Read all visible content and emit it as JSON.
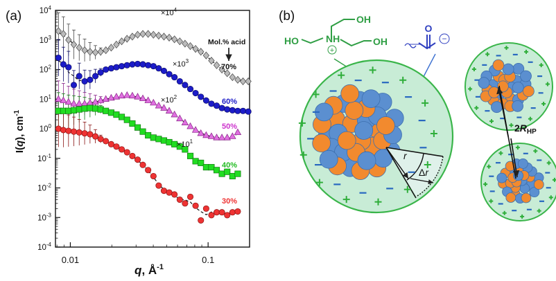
{
  "panel_a": {
    "label": "(a)",
    "chart_data": {
      "type": "scatter",
      "xscale": "log",
      "yscale": "log",
      "xlim": [
        0.0078,
        0.2
      ],
      "ylim": [
        0.0001,
        10000
      ],
      "xlabel_main": "q",
      "xlabel_unit": ", Å",
      "xlabel_exp": "-1",
      "ylabel_pre": "I(",
      "ylabel_q": "q",
      "ylabel_post": "), cm",
      "ylabel_exp": "-1",
      "xticks": [
        {
          "value": 0.01,
          "label": "0.01"
        },
        {
          "value": 0.1,
          "label": "0.1"
        }
      ],
      "yticks": [
        {
          "value": 10000,
          "exp": "4"
        },
        {
          "value": 1000,
          "exp": "3"
        },
        {
          "value": 100,
          "exp": "2"
        },
        {
          "value": 10,
          "exp": "1"
        },
        {
          "value": 1,
          "exp": "0"
        },
        {
          "value": 0.1,
          "exp": "-1"
        },
        {
          "value": 0.01,
          "exp": "-2"
        },
        {
          "value": 0.001,
          "exp": "-3"
        },
        {
          "value": 0.0001,
          "exp": "-4"
        }
      ],
      "legend_title": "Mol.% acid",
      "series": [
        {
          "name": "70%",
          "multiplier_exp": "4",
          "color": "#bbbbbb",
          "edge": "#444444",
          "marker": "diamond",
          "x": [
            0.0082,
            0.0089,
            0.0097,
            0.0106,
            0.0116,
            0.0127,
            0.0139,
            0.0152,
            0.0166,
            0.0181,
            0.0198,
            0.0216,
            0.0236,
            0.0258,
            0.0282,
            0.0308,
            0.0336,
            0.0367,
            0.0401,
            0.0438,
            0.0478,
            0.0522,
            0.057,
            0.0623,
            0.068,
            0.0743,
            0.0811,
            0.0886,
            0.0968,
            0.1057,
            0.1154,
            0.126,
            0.1376,
            0.1503,
            0.1641,
            0.1792,
            0.1957
          ],
          "y": [
            2000,
            1600,
            1000,
            700,
            550,
            450,
            400,
            380,
            400,
            450,
            550,
            700,
            900,
            1100,
            1300,
            1500,
            1600,
            1600,
            1500,
            1400,
            1300,
            1200,
            1050,
            900,
            750,
            620,
            500,
            400,
            300,
            200,
            140,
            100,
            75,
            55,
            45,
            40,
            40
          ]
        },
        {
          "name": "60%",
          "multiplier_exp": "3",
          "color": "#1c1cc8",
          "edge": "#0a0a66",
          "marker": "circle",
          "x": [
            0.0082,
            0.0089,
            0.0097,
            0.0106,
            0.0116,
            0.0127,
            0.0139,
            0.0152,
            0.0166,
            0.0181,
            0.0198,
            0.0216,
            0.0236,
            0.0258,
            0.0282,
            0.0308,
            0.0336,
            0.0367,
            0.0401,
            0.0438,
            0.0478,
            0.0522,
            0.057,
            0.0623,
            0.068,
            0.0743,
            0.0811,
            0.0886,
            0.0968,
            0.1057,
            0.1154,
            0.126,
            0.1376,
            0.1503,
            0.1641,
            0.1792,
            0.1957
          ],
          "y": [
            250,
            150,
            120,
            30,
            60,
            40,
            45,
            60,
            80,
            100,
            110,
            120,
            130,
            140,
            150,
            155,
            150,
            140,
            130,
            110,
            90,
            70,
            55,
            40,
            30,
            22,
            16,
            12,
            9,
            7,
            6,
            5,
            4.5,
            4.2,
            4,
            4,
            3.8
          ]
        },
        {
          "name": "50%",
          "multiplier_exp": "2",
          "color": "#e070e0",
          "edge": "#882288",
          "marker": "triangle",
          "x": [
            0.0082,
            0.0089,
            0.0097,
            0.0106,
            0.0116,
            0.0127,
            0.0139,
            0.0152,
            0.0166,
            0.0181,
            0.0198,
            0.0216,
            0.0236,
            0.0258,
            0.0282,
            0.0308,
            0.0336,
            0.0367,
            0.0401,
            0.0438,
            0.0478,
            0.0522,
            0.057,
            0.0623,
            0.068,
            0.0743,
            0.0811,
            0.0886,
            0.0968,
            0.1057,
            0.1154,
            0.126,
            0.1376,
            0.1503,
            0.1641
          ],
          "y": [
            10,
            9,
            8,
            7,
            7,
            7,
            7.5,
            8,
            9,
            10,
            11,
            12,
            13,
            13.5,
            13,
            12,
            10.5,
            9,
            7.5,
            6,
            5,
            4,
            3,
            2.2,
            1.6,
            1.2,
            0.9,
            0.7,
            0.6,
            0.55,
            0.5,
            0.5,
            0.5,
            0.55,
            0.75
          ]
        },
        {
          "name": "40%",
          "multiplier_exp": "1",
          "color": "#22dd22",
          "edge": "#117711",
          "marker": "square",
          "x": [
            0.0082,
            0.0089,
            0.0097,
            0.0106,
            0.0116,
            0.0127,
            0.0139,
            0.0152,
            0.0166,
            0.0181,
            0.0198,
            0.0216,
            0.0236,
            0.0258,
            0.0282,
            0.0308,
            0.0336,
            0.0367,
            0.0401,
            0.0438,
            0.0478,
            0.0522,
            0.057,
            0.0623,
            0.068,
            0.0743,
            0.0811,
            0.0886,
            0.0968,
            0.1057,
            0.1154,
            0.126,
            0.1376,
            0.1503,
            0.1641
          ],
          "y": [
            4,
            4,
            4,
            4.2,
            4.5,
            4.8,
            5,
            4.8,
            4.5,
            4,
            3.5,
            3,
            2.5,
            2,
            1.5,
            1.1,
            0.8,
            0.6,
            0.5,
            0.45,
            0.4,
            0.35,
            0.3,
            0.25,
            0.2,
            0.12,
            0.08,
            0.07,
            0.05,
            0.05,
            0.04,
            0.03,
            0.035,
            0.025,
            0.03
          ]
        },
        {
          "name": "30%",
          "multiplier_exp": "",
          "color": "#ee3333",
          "edge": "#881111",
          "marker": "circle",
          "x": [
            0.0082,
            0.0089,
            0.0097,
            0.0106,
            0.0116,
            0.0127,
            0.0139,
            0.0152,
            0.0166,
            0.0181,
            0.0198,
            0.0216,
            0.0236,
            0.0258,
            0.0282,
            0.0308,
            0.0336,
            0.0367,
            0.0401,
            0.0438,
            0.0478,
            0.0522,
            0.057,
            0.0623,
            0.068,
            0.0743,
            0.0811,
            0.0886,
            0.0968,
            0.1057,
            0.1154,
            0.126,
            0.1376,
            0.1503,
            0.1641
          ],
          "y": [
            1,
            0.9,
            0.85,
            0.8,
            0.75,
            0.7,
            0.65,
            0.55,
            0.45,
            0.38,
            0.3,
            0.25,
            0.2,
            0.16,
            0.12,
            0.09,
            0.06,
            0.04,
            0.025,
            0.012,
            0.008,
            0.007,
            0.006,
            0.004,
            0.003,
            0.005,
            0.0025,
            0.0008,
            0.002,
            0.0012,
            0.0015,
            0.0015,
            0.0012,
            0.0015,
            0.0016
          ]
        }
      ]
    }
  },
  "panel_b": {
    "label": "(b)",
    "molecule_OH_top": "OH",
    "molecule_NH": "NH",
    "molecule_plus": "+",
    "molecule_HO_left": "HO",
    "molecule_OH_right": "OH",
    "carboxylate_O": "O",
    "carboxylate_minus": "−",
    "r_label": "r",
    "delta_label": "Δ",
    "dr_label": "r",
    "hp_label_pre": "2",
    "hp_label_R": "R",
    "hp_label_sub": "HP",
    "colors": {
      "shell": "#c8ecd6",
      "shell_edge": "#3ab54a",
      "blue": "#5b8fd0",
      "orange": "#f28a2e",
      "plus": "#2fae3a",
      "minus": "#2868c0",
      "amine": "#2f9e44",
      "carboxylate": "#3040c0"
    }
  }
}
